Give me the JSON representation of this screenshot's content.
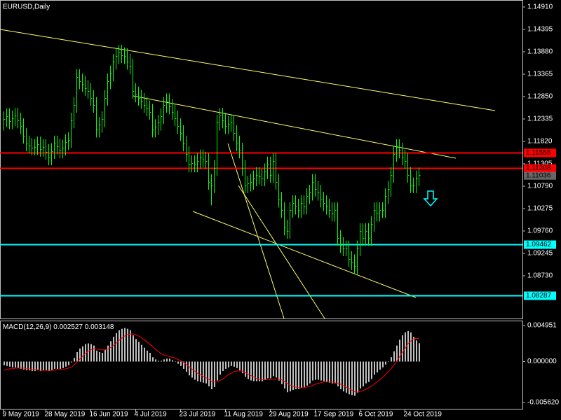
{
  "chart_data": [
    {
      "type": "ohlc",
      "title": "EURUSD,Daily",
      "color": "#00ff00",
      "categories": [
        "9 May 2019",
        null,
        null,
        null,
        null,
        null,
        null,
        null,
        null,
        null,
        null,
        null,
        null,
        null,
        null,
        "28 May 2019",
        null,
        null,
        null,
        null,
        null,
        null,
        null,
        null,
        null,
        null,
        null,
        null,
        null,
        null,
        null,
        "16 Jun 2019",
        null,
        null,
        null,
        null,
        null,
        null,
        null,
        null,
        null,
        null,
        null,
        null,
        null,
        null,
        null,
        "4 Jul 2019",
        null,
        null,
        null,
        null,
        null,
        null,
        null,
        null,
        null,
        null,
        null,
        null,
        null,
        null,
        null,
        "23 Jul 2019",
        null,
        null,
        null,
        null,
        null,
        null,
        null,
        null,
        null,
        null,
        null,
        null,
        null,
        null,
        null,
        "11 Aug 2019",
        null,
        null,
        null,
        null,
        null,
        null,
        null,
        null,
        null,
        null,
        null,
        null,
        null,
        null,
        null,
        "29 Aug 2019",
        null,
        null,
        null,
        null,
        null,
        null,
        null,
        null,
        null,
        null,
        null,
        null,
        null,
        null,
        null,
        "17 Sep 2019",
        null,
        null,
        null,
        null,
        null,
        null,
        null,
        null,
        null,
        null,
        null,
        null,
        null,
        null,
        null,
        "6 Oct 2019",
        null,
        null,
        null,
        null,
        null,
        null,
        null,
        null,
        null,
        null,
        null,
        null,
        null,
        null,
        null,
        "24 Oct 2019",
        null,
        null,
        null,
        null,
        null
      ],
      "high": [
        1.1251,
        1.1258,
        1.1258,
        1.1253,
        1.1259,
        1.1259,
        1.1248,
        1.1235,
        1.1213,
        1.1195,
        1.119,
        1.1187,
        1.1193,
        1.1193,
        1.1187,
        1.1187,
        1.1176,
        1.1178,
        1.1195,
        1.1195,
        1.1188,
        1.1186,
        1.1198,
        1.1203,
        1.1248,
        1.1284,
        1.1348,
        1.1348,
        1.1338,
        1.1332,
        1.1323,
        1.1316,
        1.13,
        1.1284,
        1.1238,
        1.1251,
        1.13,
        1.1338,
        1.1356,
        1.1383,
        1.1396,
        1.1404,
        1.1404,
        1.1398,
        1.1396,
        1.1383,
        1.1372,
        1.1316,
        1.1308,
        1.13,
        1.1293,
        1.1284,
        1.1276,
        1.1268,
        1.1233,
        1.1243,
        1.1258,
        1.1284,
        1.1292,
        1.1292,
        1.128,
        1.1268,
        1.1253,
        1.1235,
        1.1219,
        1.1195,
        1.1171,
        1.115,
        1.115,
        1.1155,
        1.1163,
        1.1163,
        1.1158,
        1.1155,
        1.1107,
        1.1139,
        1.1243,
        1.1259,
        1.1259,
        1.1248,
        1.124,
        1.1243,
        1.1243,
        1.1219,
        1.1195,
        1.1179,
        1.1139,
        1.1103,
        1.1107,
        1.1115,
        1.1123,
        1.1123,
        1.1119,
        1.1131,
        1.1147,
        1.1147,
        1.1155,
        1.1155,
        1.1107,
        1.1066,
        1.1042,
        1.1002,
        1.1042,
        1.1058,
        1.1058,
        1.105,
        1.1058,
        1.1058,
        1.1074,
        1.1082,
        1.1107,
        1.1107,
        1.1091,
        1.1082,
        1.1066,
        1.1058,
        1.105,
        1.1042,
        1.1042,
        1.1042,
        1.0978,
        1.0962,
        1.0954,
        1.0954,
        1.093,
        1.0922,
        1.0954,
        1.0994,
        1.0994,
        1.0994,
        1.0994,
        1.101,
        1.1042,
        1.1042,
        1.1042,
        1.1042,
        1.1074,
        1.1091,
        1.1123,
        1.1171,
        1.1187,
        1.1187,
        1.1179,
        1.1163,
        1.1155,
        1.1123,
        1.1099,
        1.1115,
        1.1122
      ],
      "low": [
        1.1207,
        1.1215,
        1.121,
        1.121,
        1.1217,
        1.1212,
        1.1199,
        1.1177,
        1.1159,
        1.1154,
        1.115,
        1.115,
        1.1151,
        1.1147,
        1.1147,
        1.114,
        1.1127,
        1.1127,
        1.1142,
        1.1152,
        1.1143,
        1.1143,
        1.115,
        1.1162,
        1.1167,
        1.1212,
        1.1248,
        1.1302,
        1.1296,
        1.1287,
        1.128,
        1.1264,
        1.1248,
        1.1191,
        1.1191,
        1.1202,
        1.1215,
        1.1264,
        1.1302,
        1.132,
        1.1347,
        1.136,
        1.1362,
        1.136,
        1.1347,
        1.1336,
        1.128,
        1.1272,
        1.1264,
        1.1257,
        1.1248,
        1.124,
        1.1232,
        1.1191,
        1.1191,
        1.1197,
        1.1207,
        1.1222,
        1.1248,
        1.1244,
        1.1232,
        1.1217,
        1.1199,
        1.1183,
        1.1159,
        1.1135,
        1.1111,
        1.1111,
        1.1111,
        1.1111,
        1.1119,
        1.1122,
        1.1119,
        1.1071,
        1.1035,
        1.1063,
        1.1103,
        1.1207,
        1.1212,
        1.1199,
        1.1199,
        1.1204,
        1.1183,
        1.1159,
        1.1143,
        1.1103,
        1.1063,
        1.1063,
        1.1067,
        1.1071,
        1.1079,
        1.1083,
        1.1079,
        1.1079,
        1.1095,
        1.1087,
        1.1087,
        1.1071,
        1.103,
        1.1006,
        1.0966,
        1.0958,
        1.0958,
        1.1006,
        1.1014,
        1.1006,
        1.1006,
        1.1014,
        1.1014,
        1.1038,
        1.1046,
        1.1055,
        1.1046,
        1.103,
        1.1022,
        1.1014,
        1.1006,
        1.0998,
        1.0998,
        1.0942,
        1.0926,
        1.0918,
        1.0918,
        1.0894,
        1.0886,
        1.0877,
        1.0877,
        1.0918,
        1.0942,
        1.0942,
        1.0942,
        1.0942,
        1.0974,
        1.0998,
        1.0998,
        1.1006,
        1.1006,
        1.1038,
        1.1055,
        1.1087,
        1.1135,
        1.1143,
        1.1127,
        1.1119,
        1.1087,
        1.1063,
        1.1063,
        1.1063,
        1.1079
      ],
      "close": [
        1.1233,
        1.124,
        1.1228,
        1.1235,
        1.1241,
        1.123,
        1.1217,
        1.1195,
        1.1177,
        1.1172,
        1.1168,
        1.1169,
        1.1175,
        1.1165,
        1.1169,
        1.1158,
        1.1145,
        1.116,
        1.1177,
        1.117,
        1.1161,
        1.1168,
        1.118,
        1.1185,
        1.123,
        1.1266,
        1.133,
        1.132,
        1.1314,
        1.1305,
        1.1298,
        1.1282,
        1.1266,
        1.1209,
        1.122,
        1.1233,
        1.1282,
        1.132,
        1.1338,
        1.1365,
        1.1378,
        1.1386,
        1.138,
        1.1378,
        1.1365,
        1.1354,
        1.1298,
        1.129,
        1.1282,
        1.1275,
        1.1266,
        1.1258,
        1.125,
        1.1209,
        1.1215,
        1.1225,
        1.124,
        1.1266,
        1.1274,
        1.1262,
        1.125,
        1.1235,
        1.1217,
        1.1201,
        1.1177,
        1.1153,
        1.1129,
        1.1132,
        1.1129,
        1.1137,
        1.1145,
        1.114,
        1.1137,
        1.1089,
        1.1081,
        1.1121,
        1.1225,
        1.1241,
        1.123,
        1.1217,
        1.1222,
        1.1225,
        1.1201,
        1.1177,
        1.1161,
        1.1121,
        1.1081,
        1.1085,
        1.1089,
        1.1097,
        1.1105,
        1.1101,
        1.1097,
        1.1113,
        1.1129,
        1.1105,
        1.1137,
        1.1089,
        1.1048,
        1.1024,
        1.0984,
        1.0976,
        1.1024,
        1.104,
        1.1032,
        1.1024,
        1.104,
        1.1032,
        1.1056,
        1.1064,
        1.1089,
        1.1073,
        1.1064,
        1.1048,
        1.104,
        1.1032,
        1.1024,
        1.1016,
        1.1024,
        1.096,
        1.0944,
        1.0936,
        1.0936,
        1.0912,
        1.0904,
        1.0895,
        1.0936,
        1.0976,
        1.096,
        1.0976,
        1.096,
        1.0992,
        1.1024,
        1.1016,
        1.1024,
        1.1024,
        1.1056,
        1.1073,
        1.1105,
        1.1153,
        1.1169,
        1.1161,
        1.1145,
        1.1137,
        1.1105,
        1.1081,
        1.1081,
        1.1097,
        1.1104
      ],
      "ylim": [
        1.07748,
        1.15071
      ],
      "yticks": [
        {
          "value": 1.1491,
          "label": "1.14910"
        },
        1.14395,
        {
          "value": 1.1388,
          "label": "1.13880"
        },
        1.13365,
        {
          "value": 1.1285,
          "label": "1.12850"
        },
        1.12335,
        {
          "value": 1.1182,
          "label": "1.11820"
        },
        1.11305,
        {
          "value": 1.1079,
          "label": "1.10790"
        },
        1.10275,
        {
          "value": 1.0976,
          "label": "1.09760"
        },
        1.09245,
        {
          "value": 1.0873,
          "label": "1.08730"
        }
      ],
      "levels": [
        {
          "value": 1.11555,
          "color": "#ff0000"
        },
        {
          "value": 1.11208,
          "color": "#ff0000"
        },
        {
          "value": 1.09462,
          "color": "#00ffff"
        },
        {
          "value": 1.08287,
          "color": "#00ffff"
        }
      ],
      "bid": 1.11036
    },
    {
      "type": "macd",
      "title": "MACD(12,26,9)",
      "macd_value": 0.002527,
      "signal_value": 0.003148,
      "hist_color": "#c0c0c0",
      "signal_color": "#ff0000",
      "histogram": [
        -0.0005,
        -0.0006,
        -0.0007,
        -0.0008,
        -0.0008,
        -0.0009,
        -0.001,
        -0.0011,
        -0.0012,
        -0.0012,
        -0.0013,
        -0.0013,
        -0.0012,
        -0.0013,
        -0.0012,
        -0.0012,
        -0.0013,
        -0.0012,
        -0.001,
        -0.001,
        -0.001,
        -0.0009,
        -0.0007,
        -0.0005,
        -0.0001,
        0.0005,
        0.0013,
        0.0018,
        0.0021,
        0.0024,
        0.0025,
        0.0024,
        0.0022,
        0.0015,
        0.0013,
        0.0012,
        0.0016,
        0.0022,
        0.0028,
        0.0034,
        0.0039,
        0.0043,
        0.0045,
        0.0046,
        0.0045,
        0.0043,
        0.0036,
        0.0031,
        0.0027,
        0.0023,
        0.0019,
        0.0015,
        0.0012,
        0.0006,
        0.0003,
        0.0001,
        0.0001,
        0.0003,
        0.0004,
        0.0004,
        0.0002,
        0.0,
        -0.0003,
        -0.0006,
        -0.001,
        -0.0014,
        -0.0019,
        -0.0022,
        -0.0025,
        -0.0027,
        -0.0028,
        -0.0029,
        -0.003,
        -0.0034,
        -0.0038,
        -0.0035,
        -0.0026,
        -0.0018,
        -0.0013,
        -0.001,
        -0.0008,
        -0.0006,
        -0.0007,
        -0.0009,
        -0.0012,
        -0.0016,
        -0.0021,
        -0.0024,
        -0.0026,
        -0.0027,
        -0.0027,
        -0.0027,
        -0.0027,
        -0.0025,
        -0.0023,
        -0.0023,
        -0.002,
        -0.0022,
        -0.0026,
        -0.0031,
        -0.0037,
        -0.0042,
        -0.0041,
        -0.0039,
        -0.0038,
        -0.0038,
        -0.0036,
        -0.0035,
        -0.0033,
        -0.003,
        -0.0026,
        -0.0025,
        -0.0025,
        -0.0026,
        -0.0027,
        -0.0028,
        -0.0029,
        -0.003,
        -0.003,
        -0.0034,
        -0.0038,
        -0.0041,
        -0.0043,
        -0.0045,
        -0.0046,
        -0.0047,
        -0.0043,
        -0.0037,
        -0.0034,
        -0.003,
        -0.0028,
        -0.0024,
        -0.0018,
        -0.0015,
        -0.0011,
        -0.0008,
        -0.0004,
        0.0,
        0.0006,
        0.0014,
        0.0022,
        0.003,
        0.0036,
        0.004,
        0.0042,
        0.004,
        0.0034,
        0.0029,
        0.002527
      ],
      "signal": [
        -0.0012,
        -0.0011,
        -0.001,
        -0.001,
        -0.0009,
        -0.0009,
        -0.0009,
        -0.0009,
        -0.001,
        -0.001,
        -0.0011,
        -0.0011,
        -0.0011,
        -0.0012,
        -0.0012,
        -0.0012,
        -0.0012,
        -0.0012,
        -0.0012,
        -0.0011,
        -0.0011,
        -0.0011,
        -0.001,
        -0.0009,
        -0.0008,
        -0.0005,
        -0.0001,
        0.0003,
        0.0007,
        0.0011,
        0.0014,
        0.0016,
        0.0018,
        0.0017,
        0.0017,
        0.0016,
        0.0016,
        0.0017,
        0.0019,
        0.0022,
        0.0025,
        0.0029,
        0.0032,
        0.0035,
        0.0037,
        0.0038,
        0.0038,
        0.0037,
        0.0035,
        0.0033,
        0.003,
        0.0027,
        0.0024,
        0.0021,
        0.0017,
        0.0014,
        0.0011,
        0.0009,
        0.0008,
        0.0007,
        0.0006,
        0.0005,
        0.0003,
        0.0001,
        -0.0001,
        -0.0004,
        -0.0007,
        -0.001,
        -0.0013,
        -0.0016,
        -0.0018,
        -0.002,
        -0.0022,
        -0.0024,
        -0.0027,
        -0.0028,
        -0.0028,
        -0.0026,
        -0.0024,
        -0.0021,
        -0.0018,
        -0.0016,
        -0.0014,
        -0.0013,
        -0.0013,
        -0.0013,
        -0.0015,
        -0.0017,
        -0.0019,
        -0.0021,
        -0.0023,
        -0.0024,
        -0.0025,
        -0.0025,
        -0.0025,
        -0.0025,
        -0.0024,
        -0.0024,
        -0.0024,
        -0.0025,
        -0.0027,
        -0.003,
        -0.0032,
        -0.0034,
        -0.0035,
        -0.0036,
        -0.0036,
        -0.0036,
        -0.0035,
        -0.0034,
        -0.0033,
        -0.0031,
        -0.003,
        -0.0029,
        -0.0028,
        -0.0028,
        -0.0028,
        -0.0028,
        -0.0029,
        -0.003,
        -0.0031,
        -0.0033,
        -0.0035,
        -0.0037,
        -0.0039,
        -0.0041,
        -0.0042,
        -0.0041,
        -0.004,
        -0.0038,
        -0.0036,
        -0.0034,
        -0.0031,
        -0.0028,
        -0.0025,
        -0.0022,
        -0.0018,
        -0.0014,
        -0.001,
        -0.0005,
        0.0,
        0.0006,
        0.0012,
        0.0018,
        0.0024,
        0.0028,
        0.0031,
        0.0032,
        0.003148
      ],
      "ylim": [
        -0.006581,
        0.005624
      ],
      "yticks": [
        0.004951,
        {
          "value": 0,
          "label": "0.000000"
        },
        {
          "value": -0.00562,
          "label": "-0.005620"
        }
      ]
    }
  ]
}
